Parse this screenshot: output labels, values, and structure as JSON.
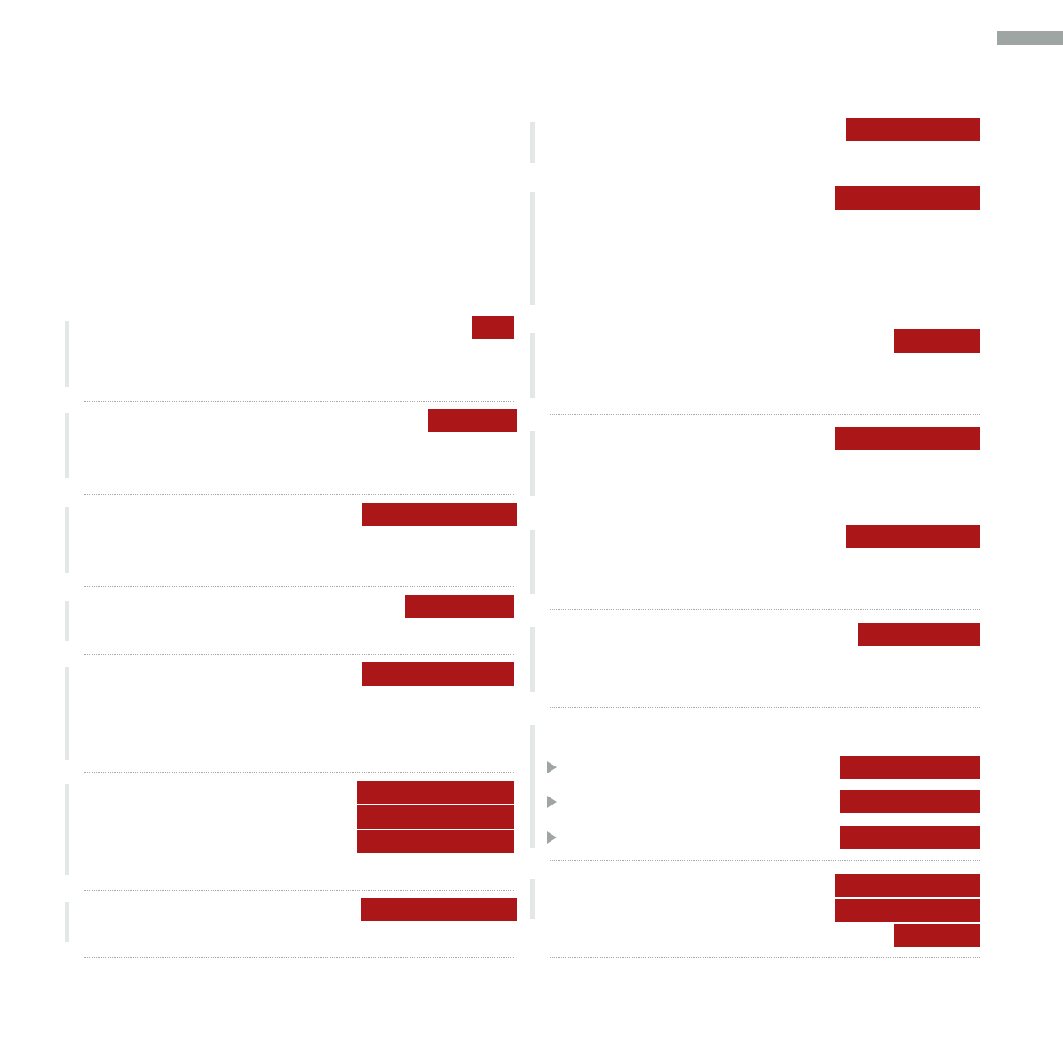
{
  "colors": {
    "redaction": "#ab1719",
    "section_marker": "#e3e7e6",
    "divider": "#a8a8a8",
    "tab": "#9ea5a3",
    "bullet": "#9ea5a3"
  },
  "icons": {
    "bullet": "triangle-right-icon"
  }
}
